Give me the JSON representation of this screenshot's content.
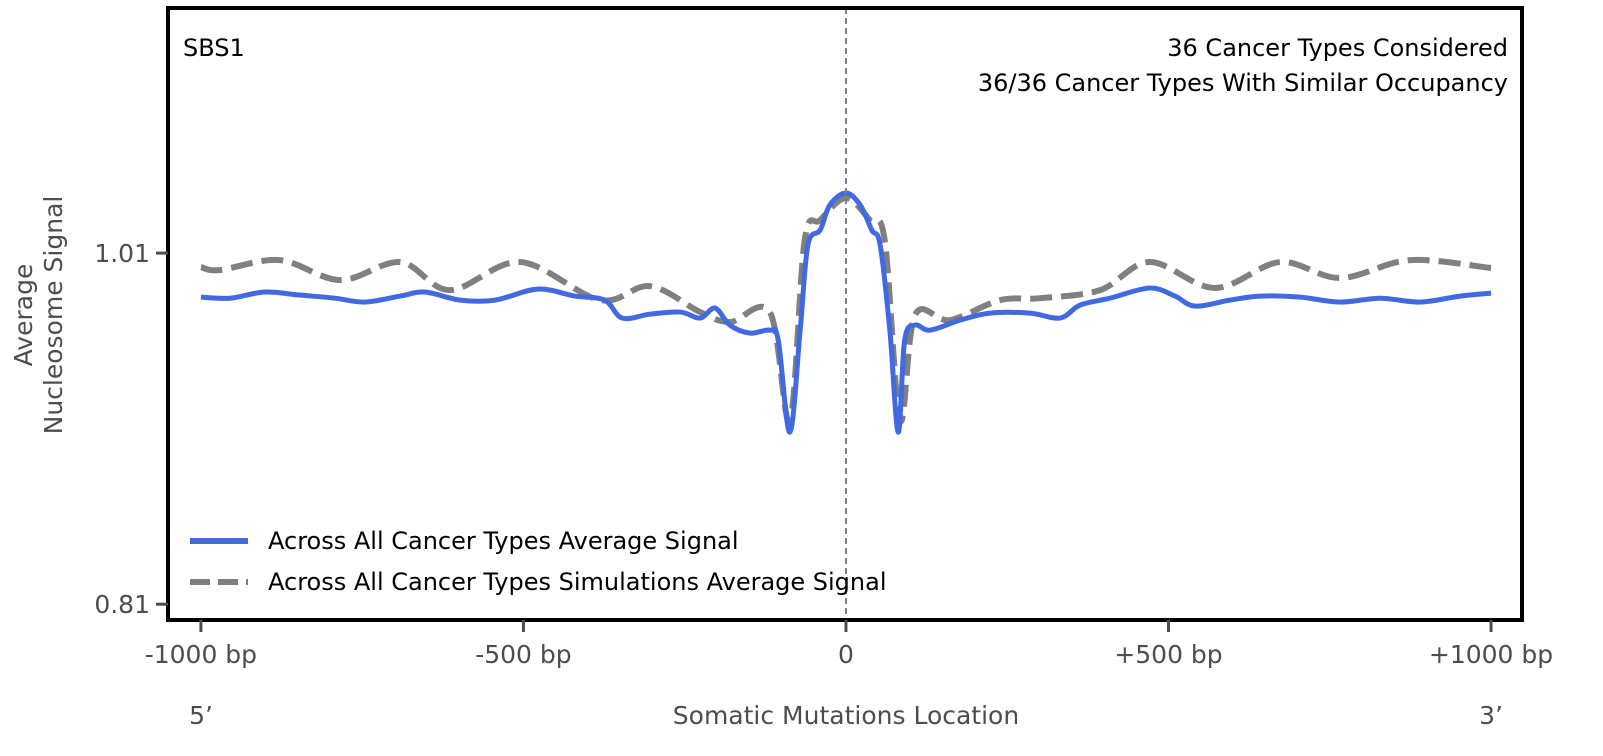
{
  "chart_data": {
    "type": "line",
    "signature_label": "SBS1",
    "annotations": [
      "36 Cancer Types Considered",
      "36/36 Cancer Types With Similar Occupancy"
    ],
    "xlabel": "Somatic Mutations Location",
    "ylabel_lines": [
      "Average",
      "Nucleosome Signal"
    ],
    "x_end_labels": {
      "left": "5’",
      "right": "3’"
    },
    "xlim": [
      -1051,
      1048
    ],
    "ylim": [
      0.801,
      1.1496
    ],
    "x_ticks": [
      {
        "value": -1000,
        "label": "-1000 bp"
      },
      {
        "value": -500,
        "label": "-500 bp"
      },
      {
        "value": 0,
        "label": "0"
      },
      {
        "value": 500,
        "label": "+500 bp"
      },
      {
        "value": 1000,
        "label": "+1000 bp"
      }
    ],
    "y_ticks": [
      {
        "value": 1.01,
        "label": "1.01"
      },
      {
        "value": 0.81,
        "label": "0.81"
      }
    ],
    "reference_line_x": 0,
    "grid": false,
    "legend_placement": "lower-left",
    "series": [
      {
        "name": "Across All Cancer Types Average Signal",
        "color": "#4169e1",
        "style": "solid",
        "points": [
          [
            -1000,
            0.9849
          ],
          [
            -955,
            0.9843
          ],
          [
            -901,
            0.9878
          ],
          [
            -847,
            0.9861
          ],
          [
            -792,
            0.9843
          ],
          [
            -746,
            0.9821
          ],
          [
            -691,
            0.9855
          ],
          [
            -653,
            0.9878
          ],
          [
            -598,
            0.9832
          ],
          [
            -544,
            0.9832
          ],
          [
            -478,
            0.9895
          ],
          [
            -420,
            0.9855
          ],
          [
            -374,
            0.9832
          ],
          [
            -347,
            0.973
          ],
          [
            -304,
            0.9752
          ],
          [
            -257,
            0.9764
          ],
          [
            -226,
            0.973
          ],
          [
            -203,
            0.9787
          ],
          [
            -180,
            0.969
          ],
          [
            -149,
            0.9644
          ],
          [
            -118,
            0.9661
          ],
          [
            -105,
            0.9604
          ],
          [
            -87,
            0.908
          ],
          [
            -71,
            0.9661
          ],
          [
            -59,
            1.0146
          ],
          [
            -40,
            1.0231
          ],
          [
            -25,
            1.0374
          ],
          [
            0,
            1.0442
          ],
          [
            22,
            1.0374
          ],
          [
            40,
            1.0231
          ],
          [
            53,
            1.0146
          ],
          [
            68,
            0.9661
          ],
          [
            81,
            0.908
          ],
          [
            91,
            0.9604
          ],
          [
            107,
            0.969
          ],
          [
            130,
            0.9661
          ],
          [
            177,
            0.9718
          ],
          [
            223,
            0.9758
          ],
          [
            285,
            0.9758
          ],
          [
            332,
            0.973
          ],
          [
            363,
            0.9804
          ],
          [
            409,
            0.9843
          ],
          [
            471,
            0.9901
          ],
          [
            510,
            0.9855
          ],
          [
            541,
            0.9798
          ],
          [
            595,
            0.9832
          ],
          [
            642,
            0.9855
          ],
          [
            704,
            0.9849
          ],
          [
            766,
            0.9821
          ],
          [
            828,
            0.9843
          ],
          [
            890,
            0.9821
          ],
          [
            952,
            0.9855
          ],
          [
            1000,
            0.9872
          ]
        ]
      },
      {
        "name": "Across All Cancer Types Simulations Average Signal",
        "color": "#808080",
        "style": "dashed",
        "points": [
          [
            -1000,
            1.002
          ],
          [
            -971,
            1.0003
          ],
          [
            -878,
            1.006
          ],
          [
            -784,
            0.9946
          ],
          [
            -691,
            1.0049
          ],
          [
            -614,
            0.9889
          ],
          [
            -505,
            1.0049
          ],
          [
            -381,
            0.9832
          ],
          [
            -304,
            0.9912
          ],
          [
            -226,
            0.9764
          ],
          [
            -180,
            0.9707
          ],
          [
            -118,
            0.9764
          ],
          [
            -87,
            0.9148
          ],
          [
            -64,
            1.0174
          ],
          [
            -40,
            1.0288
          ],
          [
            0,
            1.0414
          ],
          [
            37,
            1.0288
          ],
          [
            60,
            1.0174
          ],
          [
            84,
            0.9148
          ],
          [
            107,
            0.9747
          ],
          [
            161,
            0.9718
          ],
          [
            239,
            0.9832
          ],
          [
            301,
            0.9843
          ],
          [
            394,
            0.9889
          ],
          [
            471,
            1.0049
          ],
          [
            572,
            0.9901
          ],
          [
            673,
            1.0049
          ],
          [
            766,
            0.9958
          ],
          [
            874,
            1.006
          ],
          [
            1000,
            1.0015
          ]
        ]
      }
    ]
  }
}
